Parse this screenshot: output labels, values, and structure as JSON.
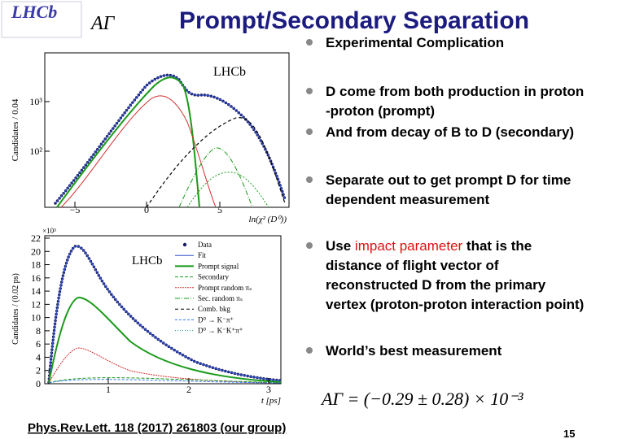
{
  "header": {
    "logo": "LHCb",
    "symbol": "AΓ",
    "title": "Prompt/Secondary Separation"
  },
  "plots": [
    {
      "watermark": "LHCb",
      "y_label": "Candidates / 0.04",
      "x_label": "ln(χ² (D⁰))",
      "xticks": [
        "−5",
        "0",
        "5"
      ],
      "yticks": [
        "10²",
        "10³"
      ]
    },
    {
      "watermark": "LHCb",
      "multiplier": "×10³",
      "y_label": "Candidates / (0.02 ps)",
      "x_label": "t [ps]",
      "xticks": [
        "1",
        "2",
        "3"
      ],
      "yticks": [
        "0",
        "2",
        "4",
        "6",
        "8",
        "10",
        "12",
        "14",
        "16",
        "18",
        "20",
        "22"
      ],
      "legend": [
        "Data",
        "Fit",
        "Prompt signal",
        "Secondary",
        "Prompt random πₛ",
        "Sec. random πₛ",
        "Comb. bkg",
        "D⁰ → K⁻π⁺",
        "D⁰ → K⁻K⁺π⁺"
      ]
    }
  ],
  "bullets": [
    {
      "lines": [
        "Experimental Complication"
      ]
    },
    {
      "lines": [
        "D come from both production in proton",
        "-proton (prompt)"
      ]
    },
    {
      "lines": [
        "And from decay of B to D (secondary)"
      ]
    },
    {
      "lines": [
        "Separate out to get prompt D for time",
        "dependent measurement"
      ]
    },
    {
      "lines": [
        [
          {
            "text": "Use "
          },
          {
            "text": "impact parameter",
            "color": "#e01010"
          },
          {
            "text": " that is the"
          }
        ],
        "distance of flight vector of",
        "reconstructed D from the primary",
        "vertex (proton-proton interaction point)"
      ]
    },
    {
      "lines": [
        "World’s best measurement"
      ]
    }
  ],
  "formula": "AΓ = (−0.29 ± 0.28) × 10⁻³",
  "reference": "Phys.Rev.Lett. 118 (2017) 261803  (our group)",
  "page_number": "15"
}
